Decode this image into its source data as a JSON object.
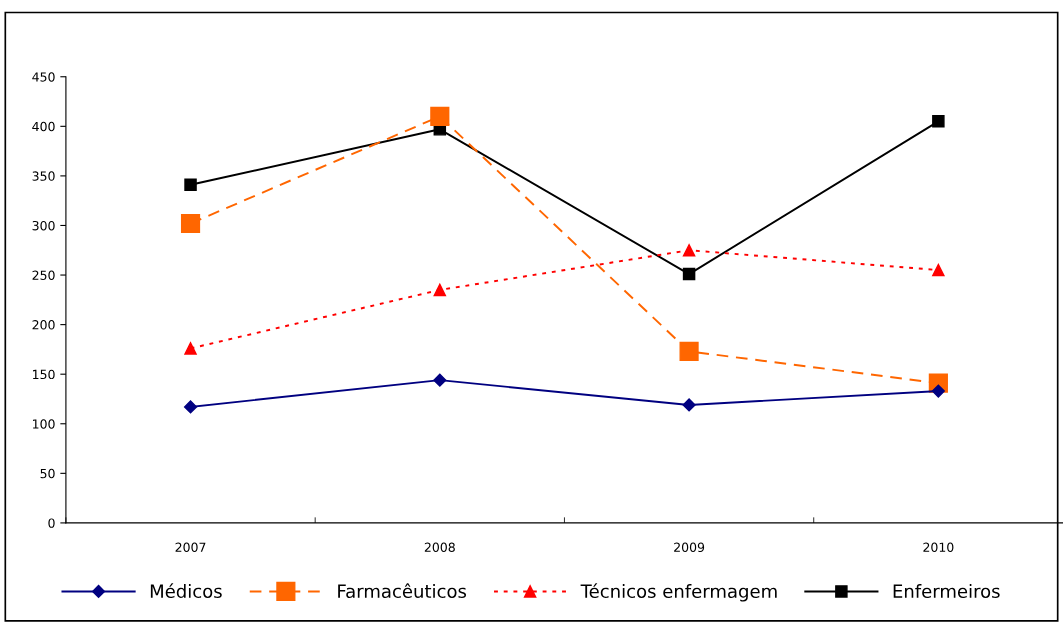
{
  "chart_data": {
    "type": "line",
    "categories": [
      "2007",
      "2008",
      "2009",
      "2010"
    ],
    "ylim": [
      0,
      450
    ],
    "yticks": [
      0,
      50,
      100,
      150,
      200,
      250,
      300,
      350,
      400,
      450
    ],
    "grid": false,
    "legend": "bottom",
    "series": [
      {
        "name": "Médicos",
        "color": "#000080",
        "marker": "diamond",
        "line_style": "solid",
        "values": [
          117,
          144,
          119,
          133
        ]
      },
      {
        "name": "Farmacêuticos",
        "color": "#ff6600",
        "marker": "square",
        "line_style": "dashed",
        "values": [
          302,
          410,
          173,
          141
        ]
      },
      {
        "name": "Técnicos enfermagem",
        "color": "#ff0000",
        "marker": "triangle",
        "line_style": "dotted",
        "values": [
          176,
          235,
          275,
          255
        ]
      },
      {
        "name": "Enfermeiros",
        "color": "#000000",
        "marker": "square",
        "line_style": "solid",
        "values": [
          341,
          397,
          251,
          405
        ]
      }
    ]
  }
}
